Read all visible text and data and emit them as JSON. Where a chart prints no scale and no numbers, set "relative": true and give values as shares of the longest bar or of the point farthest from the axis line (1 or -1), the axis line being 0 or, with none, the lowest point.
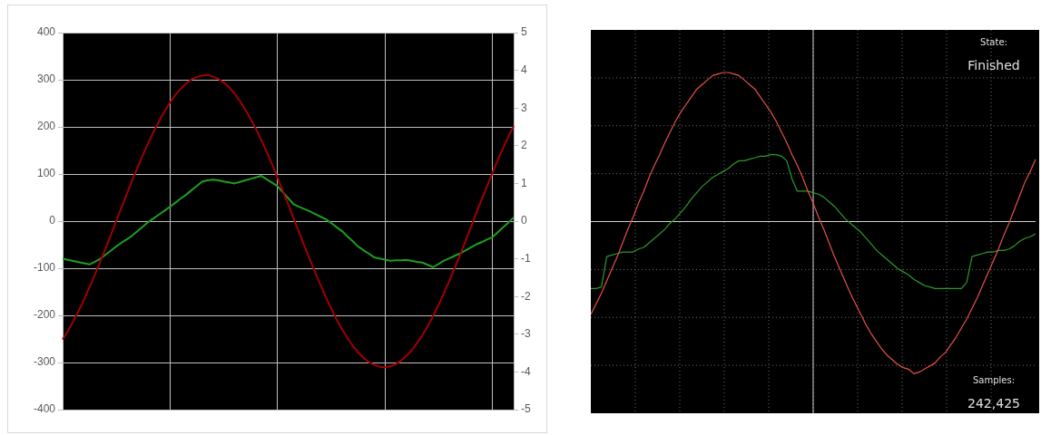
{
  "chart_data": [
    {
      "type": "line",
      "categories": [
        null,
        null,
        null,
        null,
        null,
        null,
        null,
        null,
        null,
        null,
        null,
        null,
        null,
        null,
        null,
        null,
        null,
        null,
        null,
        null,
        null,
        null,
        null,
        null,
        null,
        null,
        null,
        null,
        null,
        null,
        null,
        null,
        null,
        null,
        null,
        null,
        null,
        null,
        null,
        null,
        null,
        null,
        null,
        null,
        null,
        null,
        null,
        null,
        null,
        null,
        null,
        null,
        null,
        null,
        null,
        null,
        null,
        null,
        null,
        null,
        null,
        null,
        null,
        null,
        null,
        null,
        null,
        null,
        null,
        null,
        null,
        null,
        null,
        null,
        null,
        null,
        null,
        null,
        null,
        null,
        null,
        null,
        null,
        null,
        null
      ],
      "series": [
        {
          "color": "#a00000",
          "values": [
            -251,
            -233,
            -212,
            -190,
            -166,
            -140,
            -114,
            -86,
            -58,
            -29,
            1,
            30,
            59,
            88,
            115,
            142,
            167,
            191,
            213,
            233,
            252,
            268,
            281,
            292,
            301,
            306,
            309,
            310,
            307,
            302,
            294,
            284,
            271,
            255,
            237,
            217,
            196,
            172,
            147,
            121,
            93,
            64,
            36,
            6,
            -23,
            -52,
            -80,
            -108,
            -135,
            -161,
            -185,
            -208,
            -229,
            -247,
            -264,
            -278,
            -290,
            -299,
            -305,
            -309,
            -310,
            -308,
            -304,
            -296,
            -286,
            -274,
            -259,
            -242,
            -223,
            -201,
            -178,
            -153,
            -127,
            -100,
            -72,
            -43,
            -14,
            16,
            45,
            73,
            101,
            129,
            154,
            179,
            202
          ]
        },
        {
          "color": "#1e9e1e",
          "axis": "y2",
          "values": [
            -1.0,
            -1.03,
            -1.06,
            -1.09,
            -1.12,
            -1.15,
            -1.08,
            -1.0,
            -0.89,
            -0.78,
            -0.67,
            -0.57,
            -0.48,
            -0.38,
            -0.26,
            -0.14,
            -0.02,
            0.08,
            0.18,
            0.28,
            0.38,
            0.49,
            0.6,
            0.7,
            0.82,
            0.93,
            1.05,
            1.08,
            1.1,
            1.08,
            1.05,
            1.03,
            1.0,
            1.04,
            1.08,
            1.12,
            1.16,
            1.2,
            1.11,
            1.02,
            0.93,
            0.77,
            0.61,
            0.45,
            0.38,
            0.32,
            0.26,
            0.19,
            0.12,
            0.05,
            -0.05,
            -0.16,
            -0.26,
            -0.4,
            -0.53,
            -0.67,
            -0.77,
            -0.86,
            -0.96,
            -0.99,
            -1.02,
            -1.05,
            -1.04,
            -1.04,
            -1.03,
            -1.05,
            -1.08,
            -1.1,
            -1.16,
            -1.22,
            -1.14,
            -1.05,
            -0.99,
            -0.92,
            -0.86,
            -0.78,
            -0.7,
            -0.62,
            -0.56,
            -0.49,
            -0.43,
            -0.3,
            -0.17,
            -0.04,
            0.1
          ]
        }
      ],
      "ylim": [
        -400,
        400
      ],
      "yticks": [
        -400,
        -300,
        -200,
        -100,
        0,
        100,
        200,
        300,
        400
      ],
      "y2lim": [
        -5,
        5
      ],
      "y2ticks": [
        -5,
        -4,
        -3,
        -2,
        -1,
        0,
        1,
        2,
        3,
        4,
        5
      ],
      "grid": true,
      "marker": "none"
    },
    {
      "type": "line",
      "relative": true,
      "categories": [
        null,
        null,
        null,
        null,
        null,
        null,
        null,
        null,
        null,
        null,
        null,
        null,
        null,
        null,
        null,
        null,
        null,
        null,
        null,
        null,
        null,
        null,
        null,
        null,
        null,
        null,
        null,
        null,
        null,
        null,
        null,
        null,
        null,
        null,
        null,
        null,
        null,
        null,
        null,
        null,
        null,
        null,
        null,
        null,
        null,
        null,
        null,
        null,
        null,
        null,
        null,
        null,
        null,
        null,
        null,
        null,
        null,
        null,
        null,
        null,
        null,
        null,
        null,
        null,
        null,
        null,
        null,
        null,
        null,
        null,
        null,
        null,
        null,
        null,
        null,
        null,
        null,
        null,
        null,
        null,
        null,
        null,
        null,
        null,
        null
      ],
      "series": [
        {
          "color": "#e8504a",
          "values": [
            -0.61,
            -0.54,
            -0.47,
            -0.39,
            -0.31,
            -0.23,
            -0.14,
            -0.05,
            0.03,
            0.12,
            0.2,
            0.29,
            0.37,
            0.44,
            0.52,
            0.59,
            0.66,
            0.72,
            0.77,
            0.82,
            0.87,
            0.9,
            0.93,
            0.96,
            0.97,
            0.98,
            0.98,
            0.97,
            0.96,
            0.93,
            0.9,
            0.87,
            0.82,
            0.77,
            0.72,
            0.66,
            0.59,
            0.52,
            0.44,
            0.37,
            0.29,
            0.2,
            0.12,
            0.03,
            -0.05,
            -0.14,
            -0.23,
            -0.31,
            -0.39,
            -0.47,
            -0.54,
            -0.61,
            -0.68,
            -0.74,
            -0.79,
            -0.84,
            -0.88,
            -0.91,
            -0.94,
            -0.96,
            -0.97,
            -1.0,
            -0.99,
            -0.97,
            -0.95,
            -0.93,
            -0.89,
            -0.86,
            -0.81,
            -0.76,
            -0.7,
            -0.64,
            -0.57,
            -0.5,
            -0.42,
            -0.34,
            -0.26,
            -0.18,
            -0.09,
            -0.01,
            0.08,
            0.17,
            0.26,
            0.33,
            0.41
          ]
        },
        {
          "color": "#2a9a2a",
          "values": [
            -0.44,
            -0.44,
            -0.43,
            -0.23,
            -0.22,
            -0.21,
            -0.2,
            -0.2,
            -0.2,
            -0.18,
            -0.17,
            -0.14,
            -0.11,
            -0.08,
            -0.05,
            -0.01,
            0.02,
            0.06,
            0.1,
            0.15,
            0.19,
            0.23,
            0.26,
            0.29,
            0.31,
            0.33,
            0.35,
            0.38,
            0.4,
            0.4,
            0.41,
            0.42,
            0.43,
            0.43,
            0.44,
            0.44,
            0.43,
            0.4,
            0.28,
            0.2,
            0.2,
            0.2,
            0.19,
            0.18,
            0.16,
            0.13,
            0.1,
            0.06,
            0.02,
            -0.01,
            -0.04,
            -0.07,
            -0.11,
            -0.15,
            -0.19,
            -0.22,
            -0.25,
            -0.28,
            -0.31,
            -0.33,
            -0.35,
            -0.38,
            -0.4,
            -0.42,
            -0.43,
            -0.44,
            -0.44,
            -0.44,
            -0.44,
            -0.44,
            -0.44,
            -0.4,
            -0.23,
            -0.22,
            -0.21,
            -0.2,
            -0.2,
            -0.19,
            -0.19,
            -0.18,
            -0.16,
            -0.13,
            -0.11,
            -0.1,
            -0.08
          ]
        }
      ],
      "grid": true,
      "marker": "none",
      "annotations": [
        "State:",
        "Finished",
        "Samples:",
        "242,425"
      ]
    }
  ]
}
